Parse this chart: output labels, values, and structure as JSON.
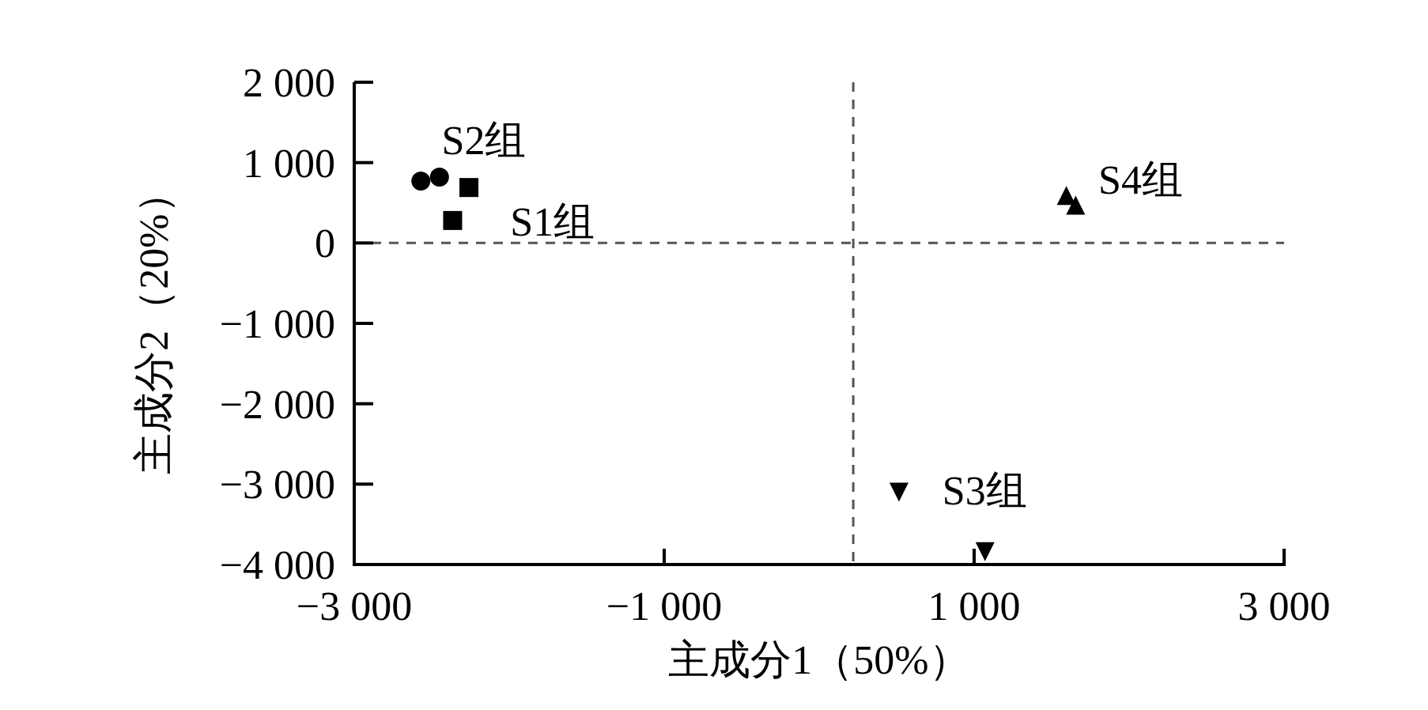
{
  "chart_data": {
    "type": "scatter",
    "xlabel": "主成分1（50%）",
    "ylabel": "主成分2（20%）",
    "xlim": [
      -3000,
      3000
    ],
    "ylim": [
      -4000,
      2000
    ],
    "xticks": [
      {
        "value": -3000,
        "label": "−3 000"
      },
      {
        "value": -1000,
        "label": "−1 000"
      },
      {
        "value": 1000,
        "label": "1 000"
      },
      {
        "value": 3000,
        "label": "3 000"
      }
    ],
    "yticks": [
      {
        "value": 2000,
        "label": "2 000"
      },
      {
        "value": 1000,
        "label": "1 000"
      },
      0,
      {
        "value": -1000,
        "label": "−1 000"
      },
      {
        "value": -2000,
        "label": "−2 000"
      },
      {
        "value": -3000,
        "label": "−3 000"
      },
      {
        "value": -4000,
        "label": "−4 000"
      }
    ],
    "grid": false,
    "series": [
      {
        "name": "S1组",
        "color": "#000000",
        "marker": "square",
        "x": [
          -2260,
          -2365
        ],
        "values": [
          690,
          280
        ]
      },
      {
        "name": "S2组",
        "color": "#000000",
        "marker": "circle",
        "x": [
          -2570,
          -2450
        ],
        "values": [
          770,
          820
        ]
      },
      {
        "name": "S3组",
        "color": "#000000",
        "marker": "triangle-down",
        "x": [
          515,
          1070
        ],
        "values": [
          -3100,
          -3840
        ]
      },
      {
        "name": "S4组",
        "color": "#000000",
        "marker": "triangle",
        "x": [
          1595,
          1655
        ],
        "values": [
          590,
          470
        ]
      }
    ],
    "ref_lines": [
      {
        "axis": "y",
        "value": 0,
        "color": "#555555",
        "line_style": "dashed"
      },
      {
        "axis": "x",
        "value": 220,
        "color": "#555555",
        "line_style": "dashed"
      }
    ]
  }
}
